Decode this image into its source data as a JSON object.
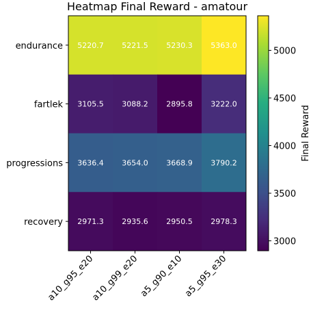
{
  "chart_data": {
    "type": "heatmap",
    "title": "Heatmap Final Reward - amatour",
    "rows": [
      "endurance",
      "fartlek",
      "progressions",
      "recovery"
    ],
    "columns": [
      "a10_g95_e20",
      "a10_g99_e20",
      "a5_g90_e10",
      "a5_g95_e30"
    ],
    "values": [
      [
        5220.7,
        5221.5,
        5230.3,
        5363.0
      ],
      [
        3105.5,
        3088.2,
        2895.8,
        3222.0
      ],
      [
        3636.4,
        3654.0,
        3668.9,
        3790.2
      ],
      [
        2971.3,
        2935.6,
        2950.5,
        2978.3
      ]
    ],
    "colorbar": {
      "label": "Final Reward",
      "ticks": [
        3000,
        3500,
        4000,
        4500,
        5000
      ],
      "range": [
        2895.8,
        5363.0
      ],
      "colormap": "viridis"
    }
  }
}
